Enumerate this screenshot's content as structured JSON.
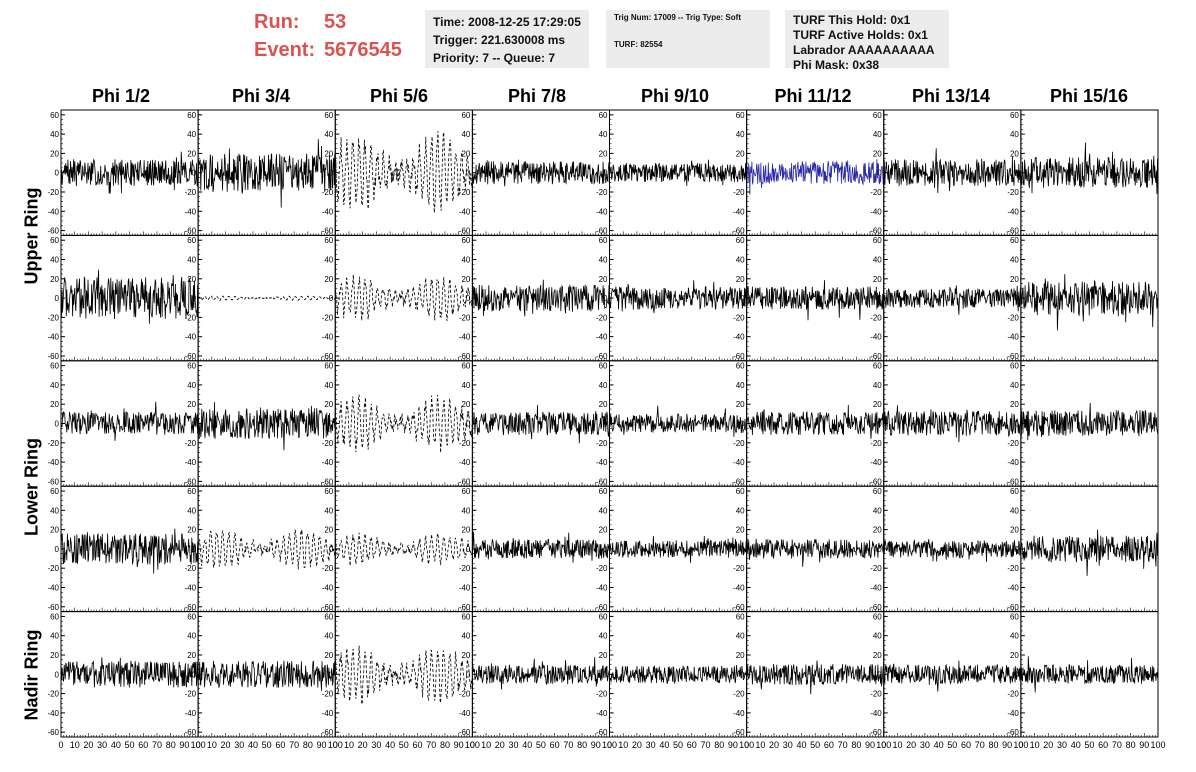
{
  "header": {
    "run_label": "Run:",
    "run_value": "53",
    "event_label": "Event:",
    "event_value": "5676545"
  },
  "time_box": {
    "time": "Time: 2008-12-25 17:29:05",
    "trigger": "Trigger: 221.630008 ms",
    "priority": "Priority: 7 -- Queue: 7"
  },
  "trig_box": {
    "trig": "Trig Num: 17009 -- Trig Type: Soft",
    "turf": "TURF: 82554"
  },
  "turf_box": {
    "this_hold": "TURF This Hold: 0x1",
    "active_holds": "TURF Active Holds: 0x1",
    "labrador": "Labrador AAAAAAAAAA",
    "phi_mask": "Phi Mask: 0x38"
  },
  "columns": [
    "Phi 1/2",
    "Phi 3/4",
    "Phi 5/6",
    "Phi 7/8",
    "Phi 9/10",
    "Phi 11/12",
    "Phi 13/14",
    "Phi 15/16"
  ],
  "ring_labels": {
    "upper": "Upper Ring",
    "lower": "Lower Ring",
    "nadir": "Nadir Ring"
  },
  "chart_data": {
    "type": "line",
    "grid_rows": 5,
    "grid_cols": 8,
    "x_range": [
      0,
      100
    ],
    "y_range": [
      -65,
      65
    ],
    "y_ticks": [
      -60,
      -40,
      -20,
      0,
      20,
      40,
      60
    ],
    "x_tick_labels": [
      "0",
      "10",
      "20",
      "30",
      "40",
      "50",
      "60",
      "70",
      "80",
      "90",
      "100"
    ],
    "colors": {
      "normal": "#000000",
      "highlight": "#2a2aa8"
    },
    "panels": [
      {
        "row": 0,
        "col": 0,
        "amp": 14,
        "style": "solid"
      },
      {
        "row": 0,
        "col": 1,
        "amp": 20,
        "style": "solid"
      },
      {
        "row": 0,
        "col": 2,
        "amp": 35,
        "style": "dashed"
      },
      {
        "row": 0,
        "col": 3,
        "amp": 12,
        "style": "solid"
      },
      {
        "row": 0,
        "col": 4,
        "amp": 10,
        "style": "solid"
      },
      {
        "row": 0,
        "col": 5,
        "amp": 12,
        "style": "solid",
        "color": "highlight"
      },
      {
        "row": 0,
        "col": 6,
        "amp": 14,
        "style": "solid"
      },
      {
        "row": 0,
        "col": 7,
        "amp": 16,
        "style": "solid"
      },
      {
        "row": 1,
        "col": 0,
        "amp": 22,
        "style": "solid"
      },
      {
        "row": 1,
        "col": 1,
        "amp": 2,
        "style": "dashed"
      },
      {
        "row": 1,
        "col": 2,
        "amp": 20,
        "style": "dashed"
      },
      {
        "row": 1,
        "col": 3,
        "amp": 14,
        "style": "solid"
      },
      {
        "row": 1,
        "col": 4,
        "amp": 12,
        "style": "solid"
      },
      {
        "row": 1,
        "col": 5,
        "amp": 12,
        "style": "solid"
      },
      {
        "row": 1,
        "col": 6,
        "amp": 10,
        "style": "solid"
      },
      {
        "row": 1,
        "col": 7,
        "amp": 18,
        "style": "solid"
      },
      {
        "row": 2,
        "col": 0,
        "amp": 12,
        "style": "solid"
      },
      {
        "row": 2,
        "col": 1,
        "amp": 16,
        "style": "solid"
      },
      {
        "row": 2,
        "col": 2,
        "amp": 24,
        "style": "dashed"
      },
      {
        "row": 2,
        "col": 3,
        "amp": 12,
        "style": "solid"
      },
      {
        "row": 2,
        "col": 4,
        "amp": 10,
        "style": "solid"
      },
      {
        "row": 2,
        "col": 5,
        "amp": 12,
        "style": "solid"
      },
      {
        "row": 2,
        "col": 6,
        "amp": 13,
        "style": "solid"
      },
      {
        "row": 2,
        "col": 7,
        "amp": 14,
        "style": "solid"
      },
      {
        "row": 3,
        "col": 0,
        "amp": 16,
        "style": "solid"
      },
      {
        "row": 3,
        "col": 1,
        "amp": 18,
        "style": "dashed"
      },
      {
        "row": 3,
        "col": 2,
        "amp": 14,
        "style": "dashed"
      },
      {
        "row": 3,
        "col": 3,
        "amp": 10,
        "style": "solid"
      },
      {
        "row": 3,
        "col": 4,
        "amp": 9,
        "style": "solid"
      },
      {
        "row": 3,
        "col": 5,
        "amp": 10,
        "style": "solid"
      },
      {
        "row": 3,
        "col": 6,
        "amp": 9,
        "style": "solid"
      },
      {
        "row": 3,
        "col": 7,
        "amp": 14,
        "style": "solid"
      },
      {
        "row": 4,
        "col": 0,
        "amp": 14,
        "style": "solid"
      },
      {
        "row": 4,
        "col": 1,
        "amp": 14,
        "style": "solid"
      },
      {
        "row": 4,
        "col": 2,
        "amp": 26,
        "style": "dashed"
      },
      {
        "row": 4,
        "col": 3,
        "amp": 10,
        "style": "solid"
      },
      {
        "row": 4,
        "col": 4,
        "amp": 9,
        "style": "solid"
      },
      {
        "row": 4,
        "col": 5,
        "amp": 11,
        "style": "solid"
      },
      {
        "row": 4,
        "col": 6,
        "amp": 10,
        "style": "solid"
      },
      {
        "row": 4,
        "col": 7,
        "amp": 10,
        "style": "solid"
      }
    ]
  }
}
